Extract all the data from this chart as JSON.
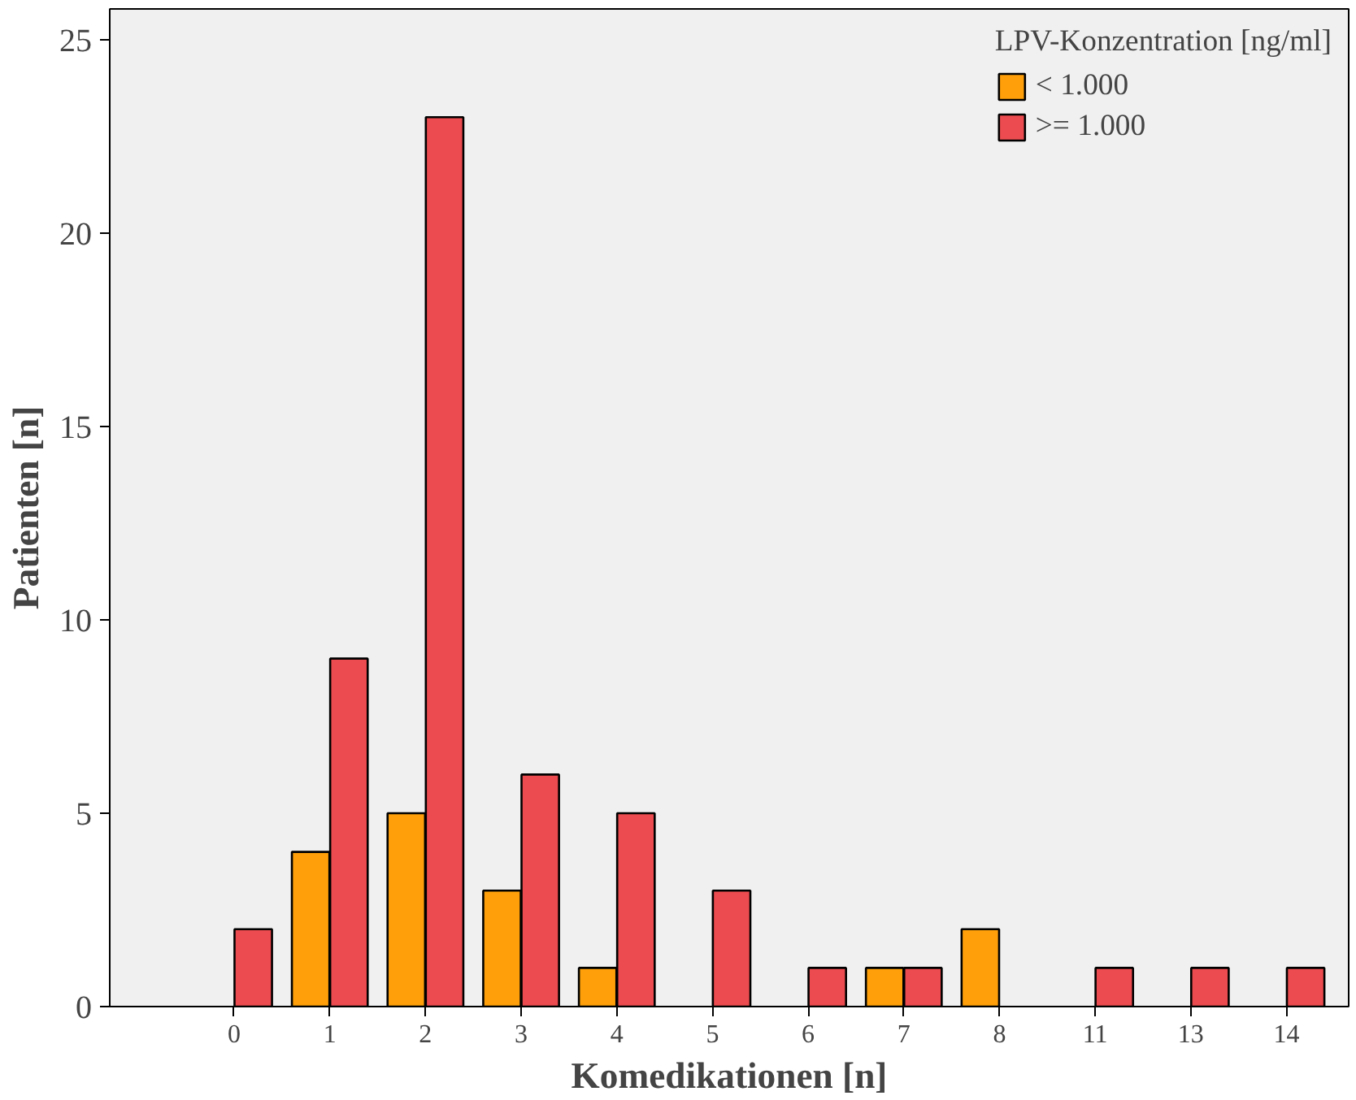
{
  "chart_data": {
    "type": "bar",
    "xlabel": "Komedikationen [n]",
    "ylabel": "Patienten [n]",
    "legend_title": "LPV-Konzentration [ng/ml]",
    "categories": [
      "0",
      "1",
      "2",
      "3",
      "4",
      "5",
      "6",
      "7",
      "8",
      "11",
      "13",
      "14"
    ],
    "series": [
      {
        "name": "< 1.000",
        "color": "#ffa00a",
        "values": [
          null,
          4,
          5,
          3,
          1,
          null,
          null,
          1,
          2,
          null,
          null,
          null
        ]
      },
      {
        "name": ">= 1.000",
        "color": "#ec4c4f",
        "values": [
          2,
          9,
          23,
          6,
          5,
          3,
          1,
          1,
          null,
          1,
          1,
          1
        ]
      }
    ],
    "ylim": [
      0,
      25.8
    ],
    "yticks": [
      0,
      5,
      10,
      15,
      20,
      25
    ],
    "grid": false,
    "legend": "top right"
  }
}
